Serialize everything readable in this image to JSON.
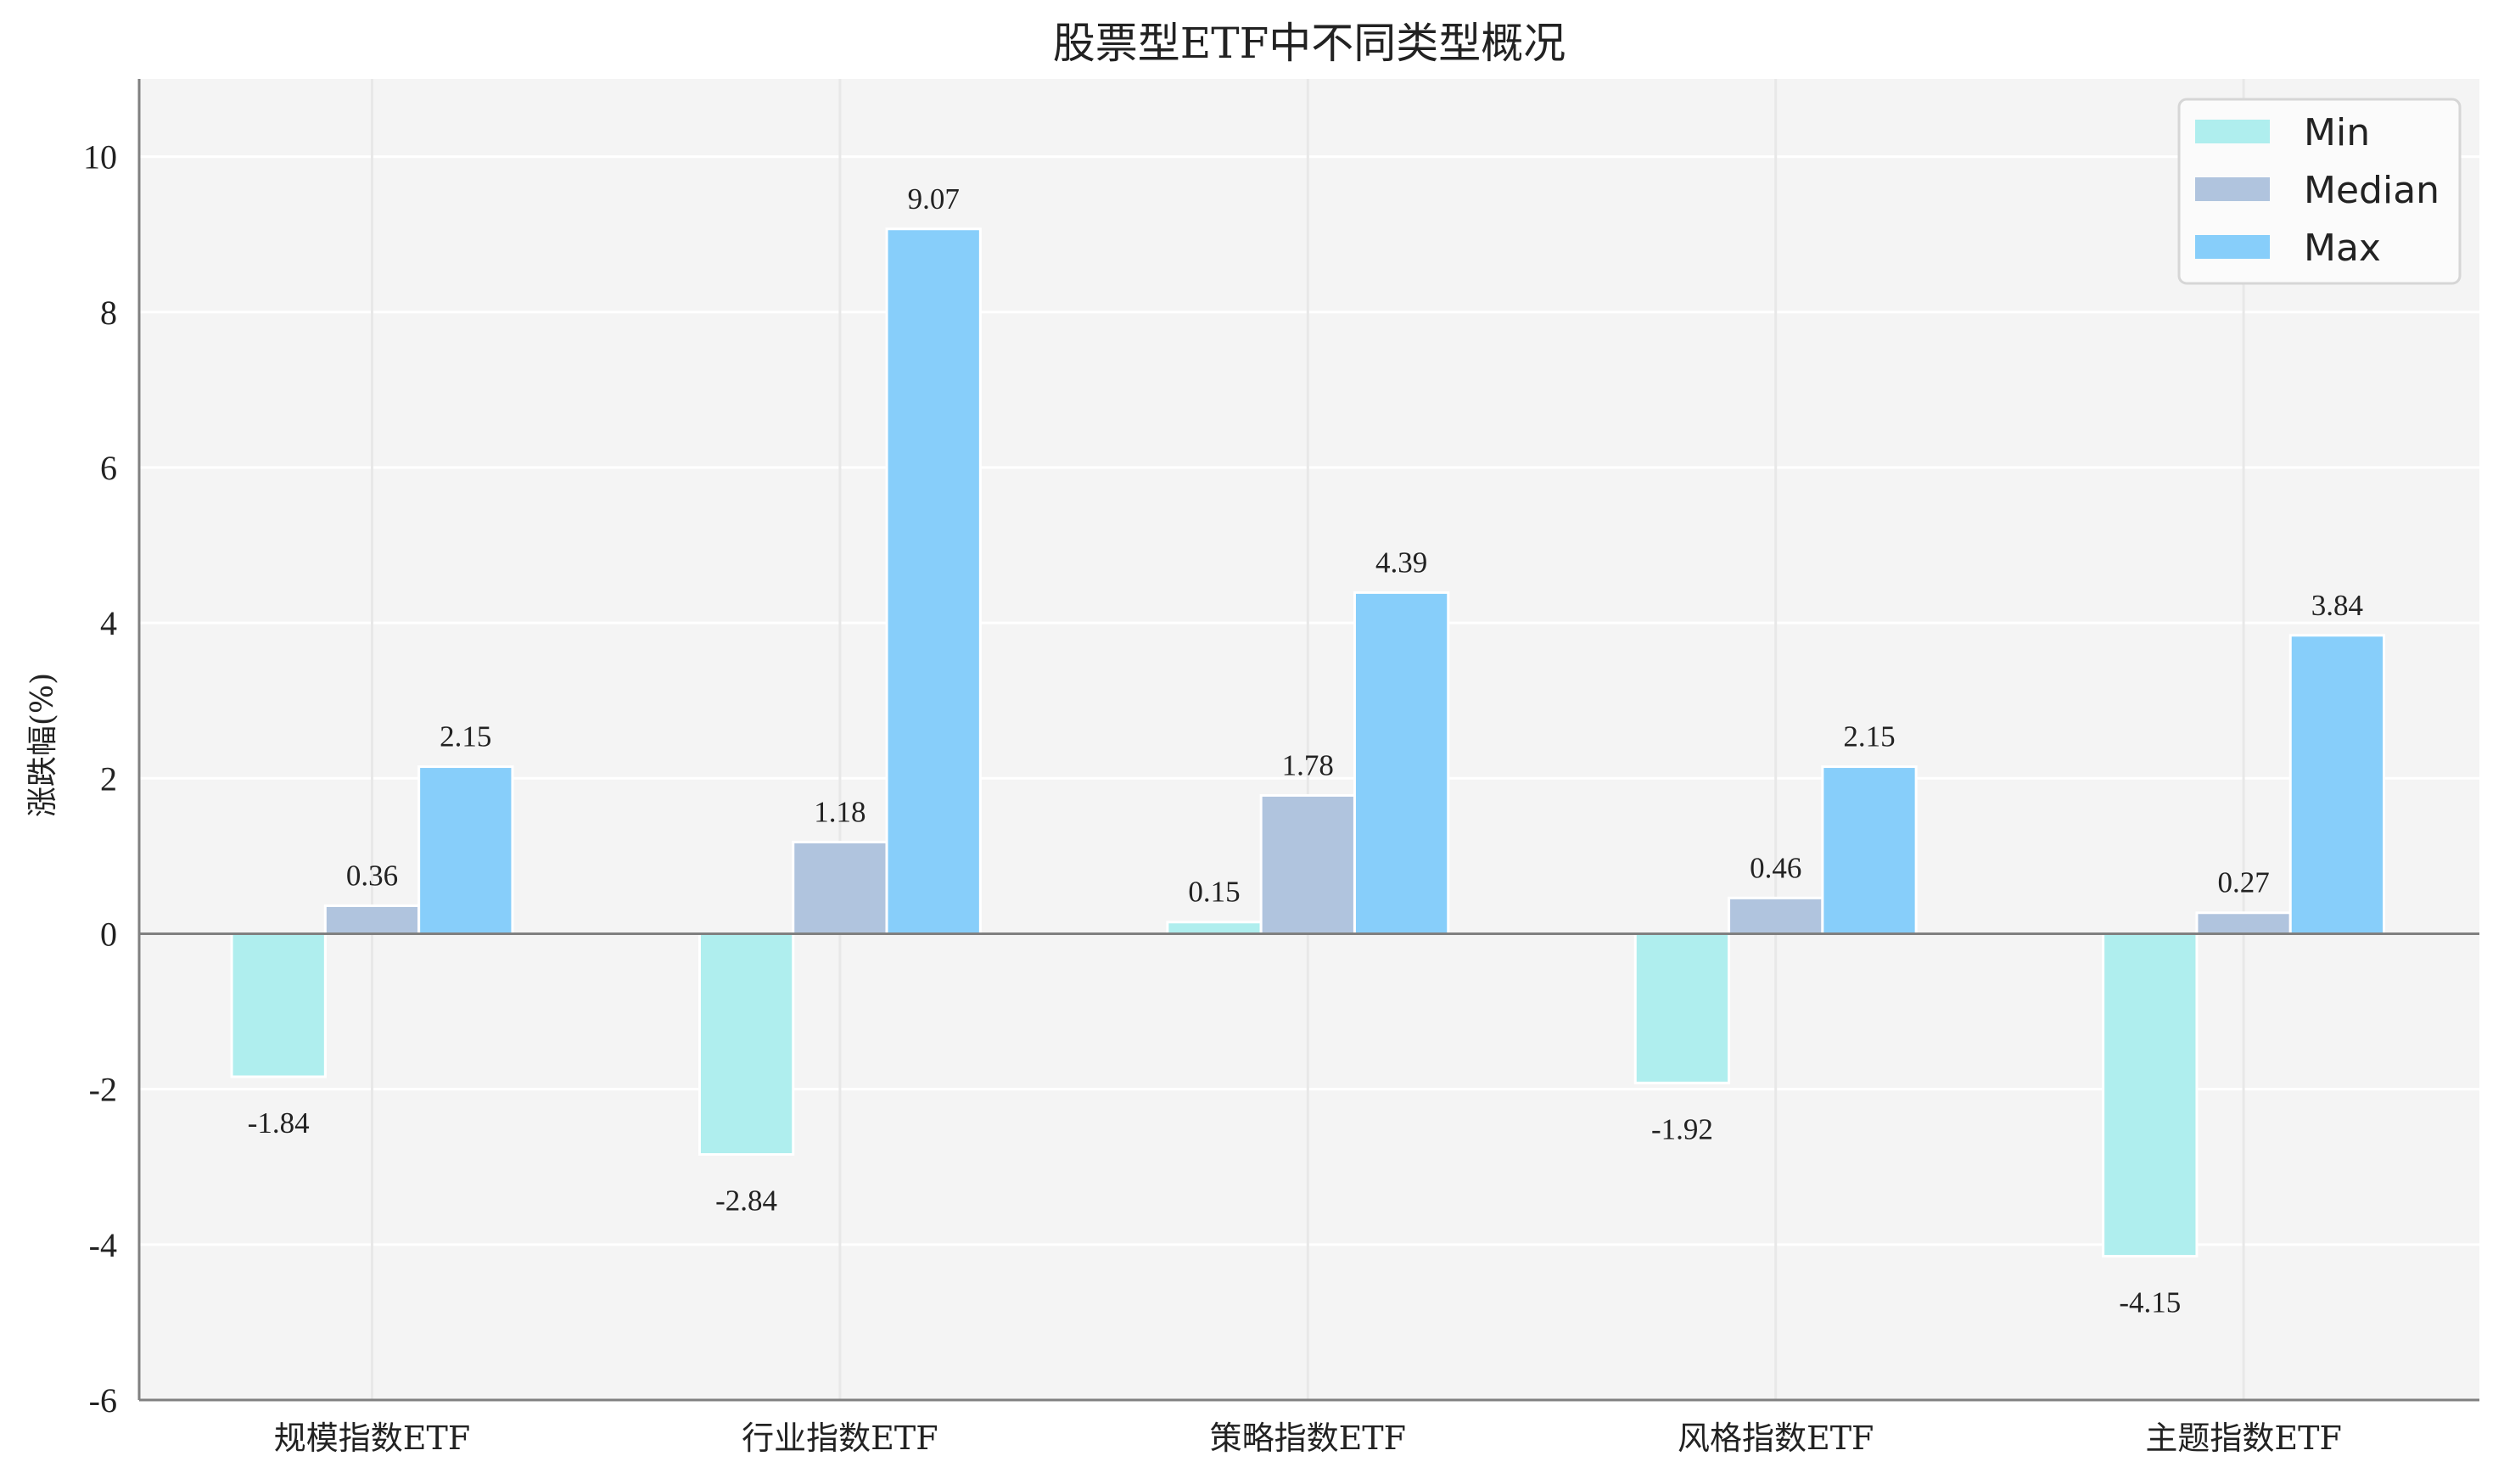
{
  "chart_data": {
    "type": "bar",
    "title": "股票型ETF中不同类型概况",
    "xlabel": "",
    "ylabel": "涨跌幅(%)",
    "categories": [
      "规模指数ETF",
      "行业指数ETF",
      "策略指数ETF",
      "风格指数ETF",
      "主题指数ETF"
    ],
    "series": [
      {
        "name": "Min",
        "color": "#AFEEEE",
        "values": [
          -1.84,
          -2.84,
          0.15,
          -1.92,
          -4.15
        ]
      },
      {
        "name": "Median",
        "color": "#B0C4DE",
        "values": [
          0.36,
          1.18,
          1.78,
          0.46,
          0.27
        ]
      },
      {
        "name": "Max",
        "color": "#87CEFA",
        "values": [
          2.15,
          9.07,
          4.39,
          2.15,
          3.84
        ]
      }
    ],
    "ylim": [
      -6,
      11
    ],
    "yticks": [
      -6,
      -4,
      -2,
      0,
      2,
      4,
      6,
      8,
      10
    ],
    "grid": true,
    "legend_position": "upper right",
    "background": "#F4F4F4"
  }
}
